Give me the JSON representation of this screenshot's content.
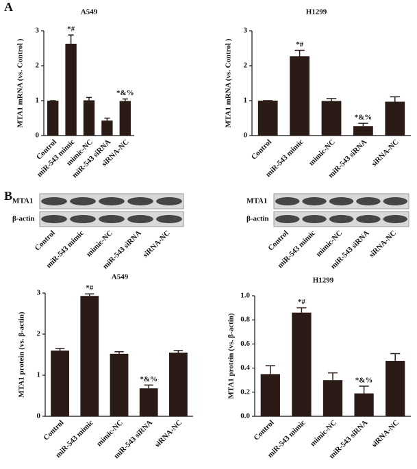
{
  "panels": [
    "A",
    "B"
  ],
  "blots": [
    {
      "rows": [
        "MTA1",
        "β-actin"
      ],
      "lanes": [
        "Control",
        "miR-543 mimic",
        "mimic-NC",
        "miR-543 siRNA",
        "siRNA-NC"
      ]
    },
    {
      "rows": [
        "MTA1",
        "β-actin"
      ],
      "lanes": [
        "Control",
        "miR-543 mimic",
        "mimic-NC",
        "miR-543 siRNA",
        "siRNA-NC"
      ]
    }
  ],
  "chart_data": [
    {
      "type": "bar",
      "title": "A549",
      "y_label": "MTA1 mRNA (vs. Control )",
      "categories": [
        "Control",
        "miR-543 mimic",
        "mimic-NC",
        "miR-543 siRNA",
        "siRNA-NC"
      ],
      "values": [
        1.0,
        2.63,
        1.01,
        0.43,
        0.99
      ],
      "errors": [
        0,
        0.25,
        0.08,
        0.07,
        0.06
      ],
      "bar_labels": [
        null,
        "*#",
        null,
        null,
        "*&%"
      ],
      "color": "#2a1b16",
      "ylim": [
        0,
        3
      ],
      "yticks": [
        0,
        1,
        2,
        3
      ]
    },
    {
      "type": "bar",
      "title": "H1299",
      "y_label": "MTA1 mRNA (vs. Control )",
      "categories": [
        "Control",
        "miR-543 mimic",
        "mimic-NC",
        "miR-543 siRNA",
        "siRNA-NC"
      ],
      "values": [
        1.0,
        2.27,
        0.99,
        0.27,
        0.97
      ],
      "errors": [
        0,
        0.17,
        0.07,
        0.08,
        0.14
      ],
      "bar_labels": [
        null,
        "*#",
        null,
        "*&%",
        null
      ],
      "color": "#2a1b16",
      "ylim": [
        0,
        3
      ],
      "yticks": [
        0,
        1,
        2,
        3
      ]
    },
    {
      "type": "bar",
      "title": "A549",
      "y_label": "MTA1 protein (vs. β-actin)",
      "categories": [
        "Control",
        "miR-543 mimic",
        "mimic-NC",
        "miR-543 siRNA",
        "siRNA-NC"
      ],
      "values": [
        1.6,
        2.93,
        1.52,
        0.68,
        1.55
      ],
      "errors": [
        0.05,
        0.05,
        0.05,
        0.08,
        0.05
      ],
      "bar_labels": [
        null,
        "*#",
        null,
        "*&%",
        null
      ],
      "color": "#2a1b16",
      "ylim": [
        0,
        3
      ],
      "yticks": [
        0,
        1,
        2,
        3
      ]
    },
    {
      "type": "bar",
      "title": "H1299",
      "y_label": "MTA1 protein (vs. β-actin)",
      "categories": [
        "Control",
        "miR-543 mimic",
        "mimic-NC",
        "miR-543 siRNA",
        "siRNA-NC"
      ],
      "values": [
        0.35,
        0.86,
        0.3,
        0.19,
        0.46
      ],
      "errors": [
        0.07,
        0.04,
        0.06,
        0.06,
        0.06
      ],
      "bar_labels": [
        null,
        "*#",
        null,
        "*&%",
        null
      ],
      "color": "#2a1b16",
      "ylim": [
        0,
        1.0
      ],
      "yticks": [
        {
          "value": 0,
          "label": "0.0"
        },
        0.2,
        0.4,
        0.6,
        0.8,
        {
          "value": 1.0,
          "label": "1.0"
        }
      ]
    }
  ]
}
